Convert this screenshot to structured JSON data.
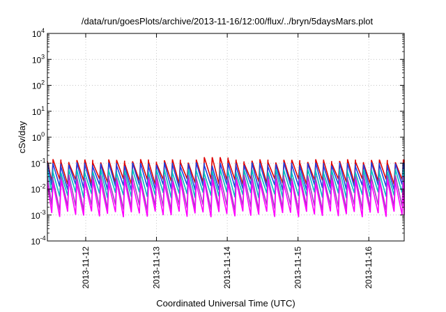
{
  "chart_data": {
    "type": "line",
    "title": "/data/run/goesPlots/archive/2013-11-16/12:00/flux/../bryn/5daysMars.plot",
    "xlabel": "Coordinated Universal Time (UTC)",
    "ylabel": "cSv/day",
    "y_scale": "log",
    "ylim": [
      0.0001,
      10000
    ],
    "xlim": [
      "2013-11-11T11:00",
      "2013-11-16T12:00"
    ],
    "grid": true,
    "y_ticks": [
      {
        "base": "10",
        "exp": "-4",
        "value": 0.0001
      },
      {
        "base": "10",
        "exp": "-3",
        "value": 0.001
      },
      {
        "base": "10",
        "exp": "-2",
        "value": 0.01
      },
      {
        "base": "10",
        "exp": "-1",
        "value": 0.1
      },
      {
        "base": "10",
        "exp": "0",
        "value": 1
      },
      {
        "base": "10",
        "exp": "1",
        "value": 10
      },
      {
        "base": "10",
        "exp": "2",
        "value": 100
      },
      {
        "base": "10",
        "exp": "3",
        "value": 1000
      },
      {
        "base": "10",
        "exp": "4",
        "value": 10000
      }
    ],
    "x_ticks": [
      {
        "label": "2013-11-12",
        "value": "2013-11-12T00:00"
      },
      {
        "label": "2013-11-13",
        "value": "2013-11-13T00:00"
      },
      {
        "label": "2013-11-14",
        "value": "2013-11-14T00:00"
      },
      {
        "label": "2013-11-15",
        "value": "2013-11-15T00:00"
      },
      {
        "label": "2013-11-16",
        "value": "2013-11-16T00:00"
      }
    ],
    "pattern": {
      "description_in_data_units": "sawtooth cycles about every 2.7 hours",
      "cycle_hours": 2.7,
      "spike_peak": {
        "x": "2013-11-13T18:30",
        "y": 0.17
      }
    },
    "series": [
      {
        "color": "#e00000",
        "peak": 0.12,
        "trough": 0.02
      },
      {
        "color": "#2040e0",
        "peak": 0.09,
        "trough": 0.012
      },
      {
        "color": "#00c0c0",
        "peak": 0.05,
        "trough": 0.006
      },
      {
        "color": "#a040c0",
        "peak": 0.03,
        "trough": 0.002
      },
      {
        "color": "#ff00ff",
        "peak": 0.02,
        "trough": 0.0011
      }
    ]
  }
}
